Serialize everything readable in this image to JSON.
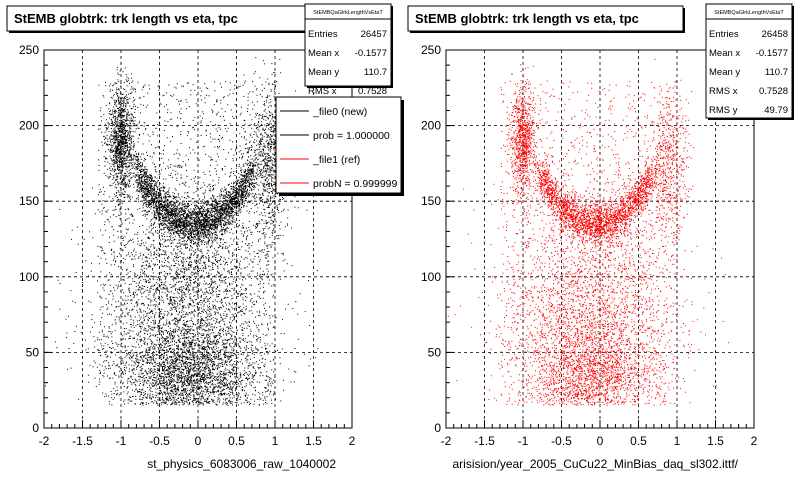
{
  "footer_text": "",
  "chart_data": [
    {
      "type": "scatter",
      "title": "StEMB globtrk: trk length vs eta, tpc",
      "xlabel": "st_physics_6083006_raw_1040002",
      "ylabel": "",
      "xlim": [
        -2,
        2
      ],
      "ylim": [
        0,
        250
      ],
      "x_ticks": [
        "-2",
        "-1.5",
        "-1",
        "-0.5",
        "0",
        "0.5",
        "1",
        "1.5",
        "2"
      ],
      "y_ticks": [
        "0",
        "50",
        "100",
        "150",
        "200",
        "250"
      ],
      "grid": true,
      "marker_color": "#000000",
      "stats": {
        "header": "StEMBQaGlrkLengthVsEtaT",
        "rows": [
          {
            "label": "Entries",
            "value": "26457"
          },
          {
            "label": "Mean x",
            "value": "-0.1577"
          },
          {
            "label": "Mean y",
            "value": "110.7"
          },
          {
            "label": "RMS x",
            "value": "0.7528"
          }
        ]
      },
      "legend": {
        "placement": "top-right",
        "entries": [
          {
            "text": "_file0 (new)",
            "color": "#000000"
          },
          {
            "text": "prob = 1.000000",
            "color": "#000000"
          },
          {
            "text": "_file1 (ref)",
            "color": "#ff0000"
          },
          {
            "text": "probN = 0.999999",
            "color": "#ff0000"
          }
        ]
      },
      "density_model": {
        "components": [
          {
            "weight": 0.26,
            "kind": "ushape",
            "center_x": -0.05,
            "base_y": 135,
            "curv": 60,
            "sx": 0.55,
            "sy": 7
          },
          {
            "weight": 0.1,
            "kind": "blob",
            "x": -1.0,
            "y": 190,
            "sx": 0.08,
            "sy": 18
          },
          {
            "weight": 0.06,
            "kind": "blob",
            "x": 0.9,
            "y": 175,
            "sx": 0.12,
            "sy": 25
          },
          {
            "weight": 0.3,
            "kind": "blob",
            "x": -0.15,
            "y": 70,
            "sx": 0.55,
            "sy": 45
          },
          {
            "weight": 0.14,
            "kind": "uniform",
            "x": [
              -1.3,
              1.0
            ],
            "y": [
              15,
              230
            ]
          },
          {
            "weight": 0.14,
            "kind": "blob",
            "x": -0.1,
            "y": 35,
            "sx": 0.4,
            "sy": 15
          }
        ],
        "n_points": 12000
      }
    },
    {
      "type": "scatter",
      "title": "StEMB globtrk: trk length vs eta, tpc",
      "xlabel": "arisision/year_2005_CuCu22_MinBias_daq_sl302.ittf/",
      "ylabel": "",
      "xlim": [
        -2,
        2
      ],
      "ylim": [
        0,
        250
      ],
      "x_ticks": [
        "-2",
        "-1.5",
        "-1",
        "-0.5",
        "0",
        "0.5",
        "1",
        "1.5",
        "2"
      ],
      "y_ticks": [
        "0",
        "50",
        "100",
        "150",
        "200",
        "250"
      ],
      "grid": true,
      "marker_color": "#ff0000",
      "stats": {
        "header": "StEMBQaGlrkLengthVsEtaT",
        "rows": [
          {
            "label": "Entries",
            "value": "26458"
          },
          {
            "label": "Mean x",
            "value": "-0.1577"
          },
          {
            "label": "Mean y",
            "value": "110.7"
          },
          {
            "label": "RMS x",
            "value": "0.7528"
          },
          {
            "label": "RMS y",
            "value": "49.79"
          }
        ]
      },
      "density_model": {
        "components": [
          {
            "weight": 0.26,
            "kind": "ushape",
            "center_x": -0.05,
            "base_y": 135,
            "curv": 60,
            "sx": 0.55,
            "sy": 7
          },
          {
            "weight": 0.1,
            "kind": "blob",
            "x": -1.0,
            "y": 190,
            "sx": 0.08,
            "sy": 18
          },
          {
            "weight": 0.06,
            "kind": "blob",
            "x": 0.9,
            "y": 175,
            "sx": 0.12,
            "sy": 25
          },
          {
            "weight": 0.3,
            "kind": "blob",
            "x": -0.15,
            "y": 70,
            "sx": 0.55,
            "sy": 45
          },
          {
            "weight": 0.14,
            "kind": "uniform",
            "x": [
              -1.3,
              1.0
            ],
            "y": [
              15,
              230
            ]
          },
          {
            "weight": 0.14,
            "kind": "blob",
            "x": -0.1,
            "y": 35,
            "sx": 0.4,
            "sy": 15
          }
        ],
        "n_points": 9000
      }
    }
  ]
}
